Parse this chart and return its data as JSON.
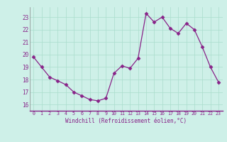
{
  "x": [
    0,
    1,
    2,
    3,
    4,
    5,
    6,
    7,
    8,
    9,
    10,
    11,
    12,
    13,
    14,
    15,
    16,
    17,
    18,
    19,
    20,
    21,
    22,
    23
  ],
  "y": [
    19.8,
    19.0,
    18.2,
    17.9,
    17.6,
    17.0,
    16.7,
    16.4,
    16.3,
    16.5,
    18.5,
    19.1,
    18.9,
    19.7,
    23.3,
    22.6,
    23.0,
    22.1,
    21.7,
    22.5,
    22.0,
    20.6,
    19.0,
    17.8
  ],
  "line_color": "#882288",
  "marker": "D",
  "marker_size": 2.5,
  "bg_color": "#cef0e8",
  "grid_color": "#aaddcc",
  "xlabel": "Windchill (Refroidissement éolien,°C)",
  "xlabel_color": "#882288",
  "tick_color": "#882288",
  "ylim": [
    15.5,
    23.8
  ],
  "xlim": [
    -0.5,
    23.5
  ],
  "yticks": [
    16,
    17,
    18,
    19,
    20,
    21,
    22,
    23
  ],
  "xticks": [
    0,
    1,
    2,
    3,
    4,
    5,
    6,
    7,
    8,
    9,
    10,
    11,
    12,
    13,
    14,
    15,
    16,
    17,
    18,
    19,
    20,
    21,
    22,
    23
  ],
  "spine_color": "#666699",
  "axis_bottom_color": "#882288"
}
